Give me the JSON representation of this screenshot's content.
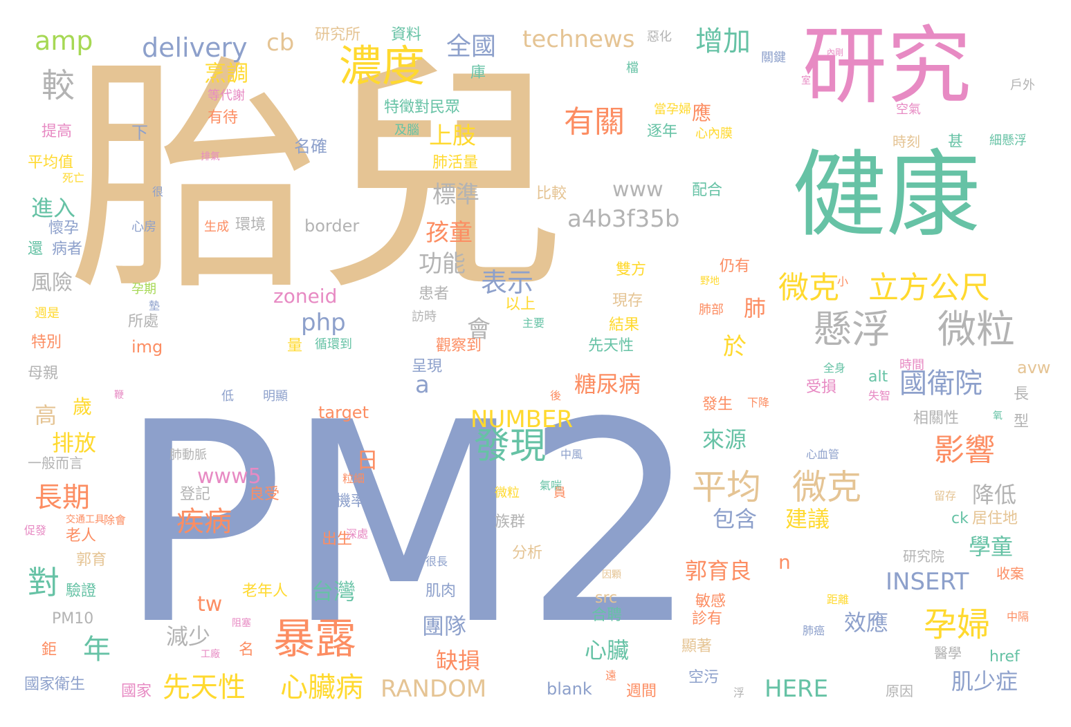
{
  "palette": {
    "tan": "#e5c494",
    "blue": "#8da0cb",
    "pink": "#e78ac3",
    "green": "#66c2a5",
    "orange": "#fc8d62",
    "yellow": "#ffd92f",
    "lime": "#a6d854",
    "gray": "#b3b3b3"
  },
  "words": [
    {
      "text": "胎兒",
      "color": "tan",
      "size": 360
    },
    {
      "text": "PM2",
      "color": "blue",
      "size": 400
    },
    {
      "text": "研究",
      "color": "pink",
      "size": 122
    },
    {
      "text": "健康",
      "color": "green",
      "size": 136
    },
    {
      "text": "濃度",
      "color": "yellow",
      "size": 62
    },
    {
      "text": "有關",
      "color": "orange",
      "size": 44
    },
    {
      "text": "懸浮",
      "color": "gray",
      "size": 56
    },
    {
      "text": "微粒",
      "color": "gray",
      "size": 56
    },
    {
      "text": "微克",
      "color": "yellow",
      "size": 44
    },
    {
      "text": "立方公尺",
      "color": "yellow",
      "size": 44
    },
    {
      "text": "國衛院",
      "color": "blue",
      "size": 40
    },
    {
      "text": "平均",
      "color": "tan",
      "size": 50
    },
    {
      "text": "微克",
      "color": "tan",
      "size": 50
    },
    {
      "text": "影響",
      "color": "orange",
      "size": 44
    },
    {
      "text": "孕婦",
      "color": "yellow",
      "size": 48
    },
    {
      "text": "發現",
      "color": "green",
      "size": 52
    },
    {
      "text": "暴露",
      "color": "orange",
      "size": 60
    },
    {
      "text": "心臟病",
      "color": "yellow",
      "size": 40
    },
    {
      "text": "先天性",
      "color": "yellow",
      "size": 40
    },
    {
      "text": "對",
      "color": "green",
      "size": 46
    },
    {
      "text": "長期",
      "color": "orange",
      "size": 40
    },
    {
      "text": "疾病",
      "color": "orange",
      "size": 40
    },
    {
      "text": "年",
      "color": "green",
      "size": 40
    },
    {
      "text": "較",
      "color": "gray",
      "size": 48
    },
    {
      "text": "增加",
      "color": "green",
      "size": 40
    },
    {
      "text": "表示",
      "color": "blue",
      "size": 38
    },
    {
      "text": "a4b3f35b",
      "color": "gray",
      "size": 34
    },
    {
      "text": "www",
      "color": "gray",
      "size": 30
    },
    {
      "text": "amp",
      "color": "lime",
      "size": 38
    },
    {
      "text": "delivery",
      "color": "blue",
      "size": 38
    },
    {
      "text": "cb",
      "color": "tan",
      "size": 34
    },
    {
      "text": "technews",
      "color": "tan",
      "size": 34
    },
    {
      "text": "全國",
      "color": "blue",
      "size": 36
    },
    {
      "text": "上肢",
      "color": "yellow",
      "size": 34
    },
    {
      "text": "標準",
      "color": "gray",
      "size": 34
    },
    {
      "text": "孩童",
      "color": "orange",
      "size": 34
    },
    {
      "text": "功能",
      "color": "gray",
      "size": 34
    },
    {
      "text": "php",
      "color": "blue",
      "size": 34
    },
    {
      "text": "zoneid",
      "color": "pink",
      "size": 28
    },
    {
      "text": "會",
      "color": "gray",
      "size": 34
    },
    {
      "text": "於",
      "color": "yellow",
      "size": 34
    },
    {
      "text": "肺",
      "color": "orange",
      "size": 32
    },
    {
      "text": "糖尿病",
      "color": "orange",
      "size": 32
    },
    {
      "text": "NUMBER",
      "color": "yellow",
      "size": 34
    },
    {
      "text": "RANDOM",
      "color": "tan",
      "size": 34
    },
    {
      "text": "INSERT",
      "color": "blue",
      "size": 34
    },
    {
      "text": "HERE",
      "color": "green",
      "size": 34
    },
    {
      "text": "www5",
      "color": "pink",
      "size": 30
    },
    {
      "text": "台灣",
      "color": "green",
      "size": 32
    },
    {
      "text": "建議",
      "color": "yellow",
      "size": 32
    },
    {
      "text": "包含",
      "color": "blue",
      "size": 32
    },
    {
      "text": "降低",
      "color": "gray",
      "size": 32
    },
    {
      "text": "學童",
      "color": "green",
      "size": 32
    },
    {
      "text": "郭育良",
      "color": "orange",
      "size": 32
    },
    {
      "text": "效應",
      "color": "blue",
      "size": 32
    },
    {
      "text": "肌少症",
      "color": "blue",
      "size": 32
    },
    {
      "text": "團隊",
      "color": "blue",
      "size": 32
    },
    {
      "text": "缺損",
      "color": "orange",
      "size": 32
    },
    {
      "text": "心臟",
      "color": "green",
      "size": 32
    },
    {
      "text": "來源",
      "color": "green",
      "size": 32
    },
    {
      "text": "排放",
      "color": "yellow",
      "size": 32
    },
    {
      "text": "減少",
      "color": "gray",
      "size": 32
    },
    {
      "text": "烹調",
      "color": "yellow",
      "size": 32
    },
    {
      "text": "進入",
      "color": "green",
      "size": 32
    },
    {
      "text": "風險",
      "color": "gray",
      "size": 30
    },
    {
      "text": "高",
      "color": "tan",
      "size": 32
    },
    {
      "text": "歲",
      "color": "yellow",
      "size": 28
    },
    {
      "text": "a",
      "color": "blue",
      "size": 34
    },
    {
      "text": "日",
      "color": "orange",
      "size": 32
    },
    {
      "text": "n",
      "color": "orange",
      "size": 28
    },
    {
      "text": "tw",
      "color": "orange",
      "size": 30
    },
    {
      "text": "應",
      "color": "orange",
      "size": 28
    },
    {
      "text": "研究所",
      "color": "tan",
      "size": 22
    },
    {
      "text": "資料",
      "color": "green",
      "size": 22
    },
    {
      "text": "惡化",
      "color": "gray",
      "size": 18
    },
    {
      "text": "檔",
      "color": "green",
      "size": 18
    },
    {
      "text": "庫",
      "color": "green",
      "size": 22
    },
    {
      "text": "特徵對民眾",
      "color": "green",
      "size": 22
    },
    {
      "text": "及腦",
      "color": "green",
      "size": 18
    },
    {
      "text": "名確",
      "color": "blue",
      "size": 24
    },
    {
      "text": "肺活量",
      "color": "yellow",
      "size": 22
    },
    {
      "text": "等代謝",
      "color": "pink",
      "size": 18
    },
    {
      "text": "有待",
      "color": "orange",
      "size": 22
    },
    {
      "text": "提高",
      "color": "pink",
      "size": 22
    },
    {
      "text": "下",
      "color": "blue",
      "size": 24
    },
    {
      "text": "平均值",
      "color": "yellow",
      "size": 22
    },
    {
      "text": "死亡",
      "color": "yellow",
      "size": 16
    },
    {
      "text": "排氣",
      "color": "pink",
      "size": 14
    },
    {
      "text": "懷孕",
      "color": "blue",
      "size": 22
    },
    {
      "text": "還",
      "color": "green",
      "size": 22
    },
    {
      "text": "病者",
      "color": "blue",
      "size": 22
    },
    {
      "text": "心房",
      "color": "blue",
      "size": 18
    },
    {
      "text": "很",
      "color": "blue",
      "size": 16
    },
    {
      "text": "生成",
      "color": "orange",
      "size": 18
    },
    {
      "text": "環境",
      "color": "gray",
      "size": 22
    },
    {
      "text": "border",
      "color": "gray",
      "size": 24
    },
    {
      "text": "比較",
      "color": "tan",
      "size": 22
    },
    {
      "text": "配合",
      "color": "green",
      "size": 22
    },
    {
      "text": "當孕婦",
      "color": "yellow",
      "size": 18
    },
    {
      "text": "逐年",
      "color": "green",
      "size": 22
    },
    {
      "text": "心內膜",
      "color": "yellow",
      "size": 18
    },
    {
      "text": "關鍵",
      "color": "blue",
      "size": 18
    },
    {
      "text": "內剛",
      "color": "pink",
      "size": 12
    },
    {
      "text": "室",
      "color": "pink",
      "size": 14
    },
    {
      "text": "戶外",
      "color": "gray",
      "size": 18
    },
    {
      "text": "空氣",
      "color": "pink",
      "size": 18
    },
    {
      "text": "時刻",
      "color": "tan",
      "size": 20
    },
    {
      "text": "甚",
      "color": "green",
      "size": 22
    },
    {
      "text": "細懸浮",
      "color": "green",
      "size": 18
    },
    {
      "text": "雙方",
      "color": "yellow",
      "size": 22
    },
    {
      "text": "現存",
      "color": "tan",
      "size": 22
    },
    {
      "text": "結果",
      "color": "yellow",
      "size": 22
    },
    {
      "text": "先天性",
      "color": "green",
      "size": 22
    },
    {
      "text": "仍有",
      "color": "orange",
      "size": 22
    },
    {
      "text": "野地",
      "color": "yellow",
      "size": 14
    },
    {
      "text": "小",
      "color": "orange",
      "size": 16
    },
    {
      "text": "肺部",
      "color": "orange",
      "size": 18
    },
    {
      "text": "患者",
      "color": "gray",
      "size": 22
    },
    {
      "text": "訪時",
      "color": "gray",
      "size": 18
    },
    {
      "text": "以上",
      "color": "yellow",
      "size": 22
    },
    {
      "text": "主要",
      "color": "green",
      "size": 16
    },
    {
      "text": "觀察到",
      "color": "orange",
      "size": 22
    },
    {
      "text": "呈現",
      "color": "blue",
      "size": 22
    },
    {
      "text": "量",
      "color": "yellow",
      "size": 22
    },
    {
      "text": "循環到",
      "color": "green",
      "size": 18
    },
    {
      "text": "孕期",
      "color": "lime",
      "size": 18
    },
    {
      "text": "墊",
      "color": "blue",
      "size": 16
    },
    {
      "text": "週是",
      "color": "yellow",
      "size": 18
    },
    {
      "text": "所處",
      "color": "gray",
      "size": 22
    },
    {
      "text": "img",
      "color": "orange",
      "size": 24
    },
    {
      "text": "特別",
      "color": "orange",
      "size": 22
    },
    {
      "text": "母親",
      "color": "gray",
      "size": 22
    },
    {
      "text": "低",
      "color": "blue",
      "size": 18
    },
    {
      "text": "鞭",
      "color": "pink",
      "size": 14
    },
    {
      "text": "明顯",
      "color": "blue",
      "size": 18
    },
    {
      "text": "target",
      "color": "orange",
      "size": 24
    },
    {
      "text": "後",
      "color": "orange",
      "size": 16
    },
    {
      "text": "發生",
      "color": "orange",
      "size": 22
    },
    {
      "text": "下降",
      "color": "orange",
      "size": 16
    },
    {
      "text": "受損",
      "color": "pink",
      "size": 22
    },
    {
      "text": "失智",
      "color": "pink",
      "size": 16
    },
    {
      "text": "alt",
      "color": "green",
      "size": 22
    },
    {
      "text": "全身",
      "color": "green",
      "size": 16
    },
    {
      "text": "時間",
      "color": "pink",
      "size": 18
    },
    {
      "text": "avw",
      "color": "tan",
      "size": 24
    },
    {
      "text": "長",
      "color": "gray",
      "size": 22
    },
    {
      "text": "型",
      "color": "gray",
      "size": 22
    },
    {
      "text": "氧",
      "color": "green",
      "size": 14
    },
    {
      "text": "相關性",
      "color": "gray",
      "size": 22
    },
    {
      "text": "一般而言",
      "color": "gray",
      "size": 20
    },
    {
      "text": "肺動脈",
      "color": "gray",
      "size": 18
    },
    {
      "text": "登記",
      "color": "gray",
      "size": 22
    },
    {
      "text": "粒細",
      "color": "orange",
      "size": 16
    },
    {
      "text": "良受",
      "color": "orange",
      "size": 22
    },
    {
      "text": "氣喘",
      "color": "green",
      "size": 16
    },
    {
      "text": "中風",
      "color": "blue",
      "size": 16
    },
    {
      "text": "微粒",
      "color": "yellow",
      "size": 18
    },
    {
      "text": "員",
      "color": "orange",
      "size": 18
    },
    {
      "text": "心血管",
      "color": "blue",
      "size": 16
    },
    {
      "text": "留存",
      "color": "tan",
      "size": 16
    },
    {
      "text": "居住地",
      "color": "tan",
      "size": 22
    },
    {
      "text": "ck",
      "color": "green",
      "size": 22
    },
    {
      "text": "機率",
      "color": "blue",
      "size": 22
    },
    {
      "text": "族群",
      "color": "gray",
      "size": 22
    },
    {
      "text": "交通工具",
      "color": "orange",
      "size": 14
    },
    {
      "text": "除會",
      "color": "orange",
      "size": 16
    },
    {
      "text": "促發",
      "color": "pink",
      "size": 16
    },
    {
      "text": "老人",
      "color": "orange",
      "size": 22
    },
    {
      "text": "郭育",
      "color": "tan",
      "size": 22
    },
    {
      "text": "出生",
      "color": "orange",
      "size": 22
    },
    {
      "text": "深處",
      "color": "pink",
      "size": 16
    },
    {
      "text": "分析",
      "color": "tan",
      "size": 22
    },
    {
      "text": "很長",
      "color": "blue",
      "size": 16
    },
    {
      "text": "研究院",
      "color": "gray",
      "size": 20
    },
    {
      "text": "收案",
      "color": "orange",
      "size": 20
    },
    {
      "text": "老年人",
      "color": "yellow",
      "size": 22
    },
    {
      "text": "驗證",
      "color": "green",
      "size": 22
    },
    {
      "text": "肌肉",
      "color": "blue",
      "size": 22
    },
    {
      "text": "因顆",
      "color": "tan",
      "size": 14
    },
    {
      "text": "src",
      "color": "tan",
      "size": 22
    },
    {
      "text": "敏感",
      "color": "orange",
      "size": 22
    },
    {
      "text": "診有",
      "color": "orange",
      "size": 22
    },
    {
      "text": "距離",
      "color": "yellow",
      "size": 16
    },
    {
      "text": "中隔",
      "color": "orange",
      "size": 16
    },
    {
      "text": "PM10",
      "color": "gray",
      "size": 22
    },
    {
      "text": "阻塞",
      "color": "pink",
      "size": 14
    },
    {
      "text": "工廠",
      "color": "pink",
      "size": 14
    },
    {
      "text": "鉅",
      "color": "orange",
      "size": 22
    },
    {
      "text": "合聘",
      "color": "green",
      "size": 22
    },
    {
      "text": "肺癌",
      "color": "blue",
      "size": 16
    },
    {
      "text": "醫學",
      "color": "gray",
      "size": 20
    },
    {
      "text": "href",
      "color": "green",
      "size": 22
    },
    {
      "text": "名",
      "color": "orange",
      "size": 22
    },
    {
      "text": "顯著",
      "color": "tan",
      "size": 22
    },
    {
      "text": "國家衛生",
      "color": "blue",
      "size": 22
    },
    {
      "text": "國家",
      "color": "pink",
      "size": 22
    },
    {
      "text": "blank",
      "color": "blue",
      "size": 24
    },
    {
      "text": "遠",
      "color": "orange",
      "size": 16
    },
    {
      "text": "週間",
      "color": "orange",
      "size": 22
    },
    {
      "text": "空污",
      "color": "blue",
      "size": 22
    },
    {
      "text": "浮",
      "color": "gray",
      "size": 16
    },
    {
      "text": "原因",
      "color": "gray",
      "size": 20
    }
  ]
}
